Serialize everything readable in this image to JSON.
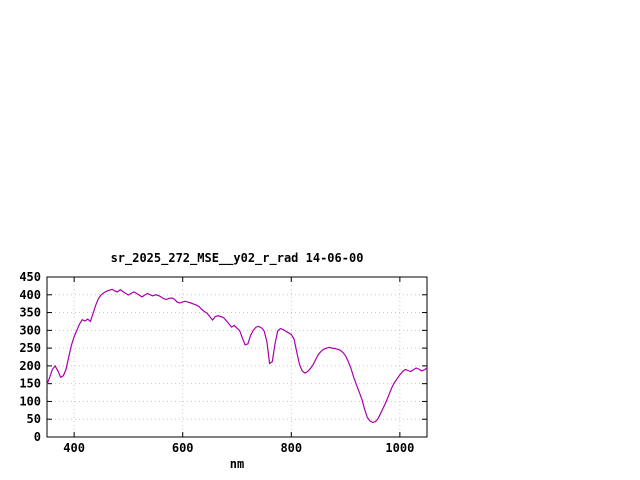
{
  "chart_data": {
    "type": "line",
    "title": "sr_2025_272_MSE__y02_r_rad 14-06-00",
    "xlabel": "nm",
    "ylabel": "",
    "x_unit": "nm",
    "xlim": [
      350,
      1050
    ],
    "ylim": [
      0,
      450
    ],
    "x_ticks": [
      400,
      600,
      800,
      1000
    ],
    "y_ticks": [
      0,
      50,
      100,
      150,
      200,
      250,
      300,
      350,
      400,
      450
    ],
    "grid": true,
    "legend": false,
    "line_color": "#aa00aa",
    "x_start": 350,
    "x_step": 5,
    "values": [
      148,
      168,
      190,
      200,
      186,
      168,
      172,
      190,
      225,
      258,
      282,
      300,
      318,
      330,
      326,
      332,
      325,
      348,
      372,
      390,
      400,
      406,
      410,
      413,
      415,
      411,
      408,
      414,
      409,
      404,
      399,
      404,
      408,
      404,
      399,
      394,
      399,
      404,
      400,
      397,
      400,
      398,
      394,
      389,
      387,
      390,
      391,
      387,
      379,
      377,
      380,
      382,
      379,
      377,
      374,
      371,
      367,
      359,
      353,
      348,
      338,
      329,
      339,
      341,
      339,
      336,
      328,
      318,
      309,
      314,
      306,
      299,
      278,
      259,
      262,
      286,
      300,
      309,
      311,
      307,
      298,
      268,
      207,
      212,
      262,
      298,
      305,
      302,
      297,
      293,
      288,
      276,
      240,
      205,
      186,
      180,
      184,
      192,
      203,
      218,
      232,
      241,
      247,
      250,
      252,
      250,
      249,
      247,
      244,
      238,
      228,
      212,
      193,
      168,
      147,
      127,
      106,
      78,
      55,
      45,
      41,
      43,
      52,
      68,
      84,
      100,
      119,
      138,
      153,
      164,
      175,
      184,
      190,
      187,
      184,
      189,
      194,
      191,
      186,
      189,
      194
    ]
  }
}
